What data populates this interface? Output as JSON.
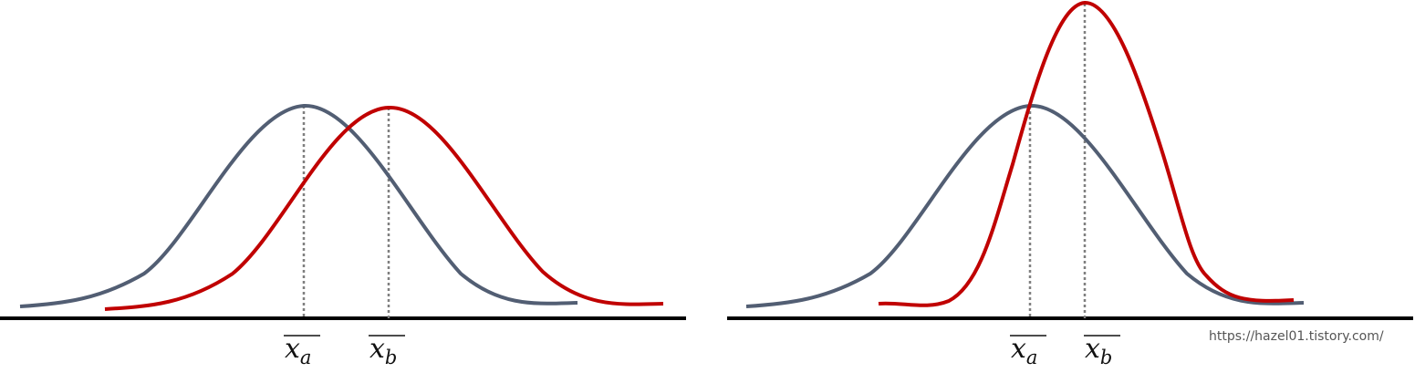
{
  "colors": {
    "curve_a": "#525e73",
    "curve_b": "#c00000",
    "axis": "#000000",
    "guide": "#7f7f7f"
  },
  "panels": [
    {
      "label_a": {
        "base": "x",
        "sub": "a"
      },
      "label_b": {
        "base": "x",
        "sub": "b"
      }
    },
    {
      "label_a": {
        "base": "x",
        "sub": "a"
      },
      "label_b": {
        "base": "x",
        "sub": "b"
      }
    }
  ],
  "watermark": "https://hazel01.tistory.com/"
}
